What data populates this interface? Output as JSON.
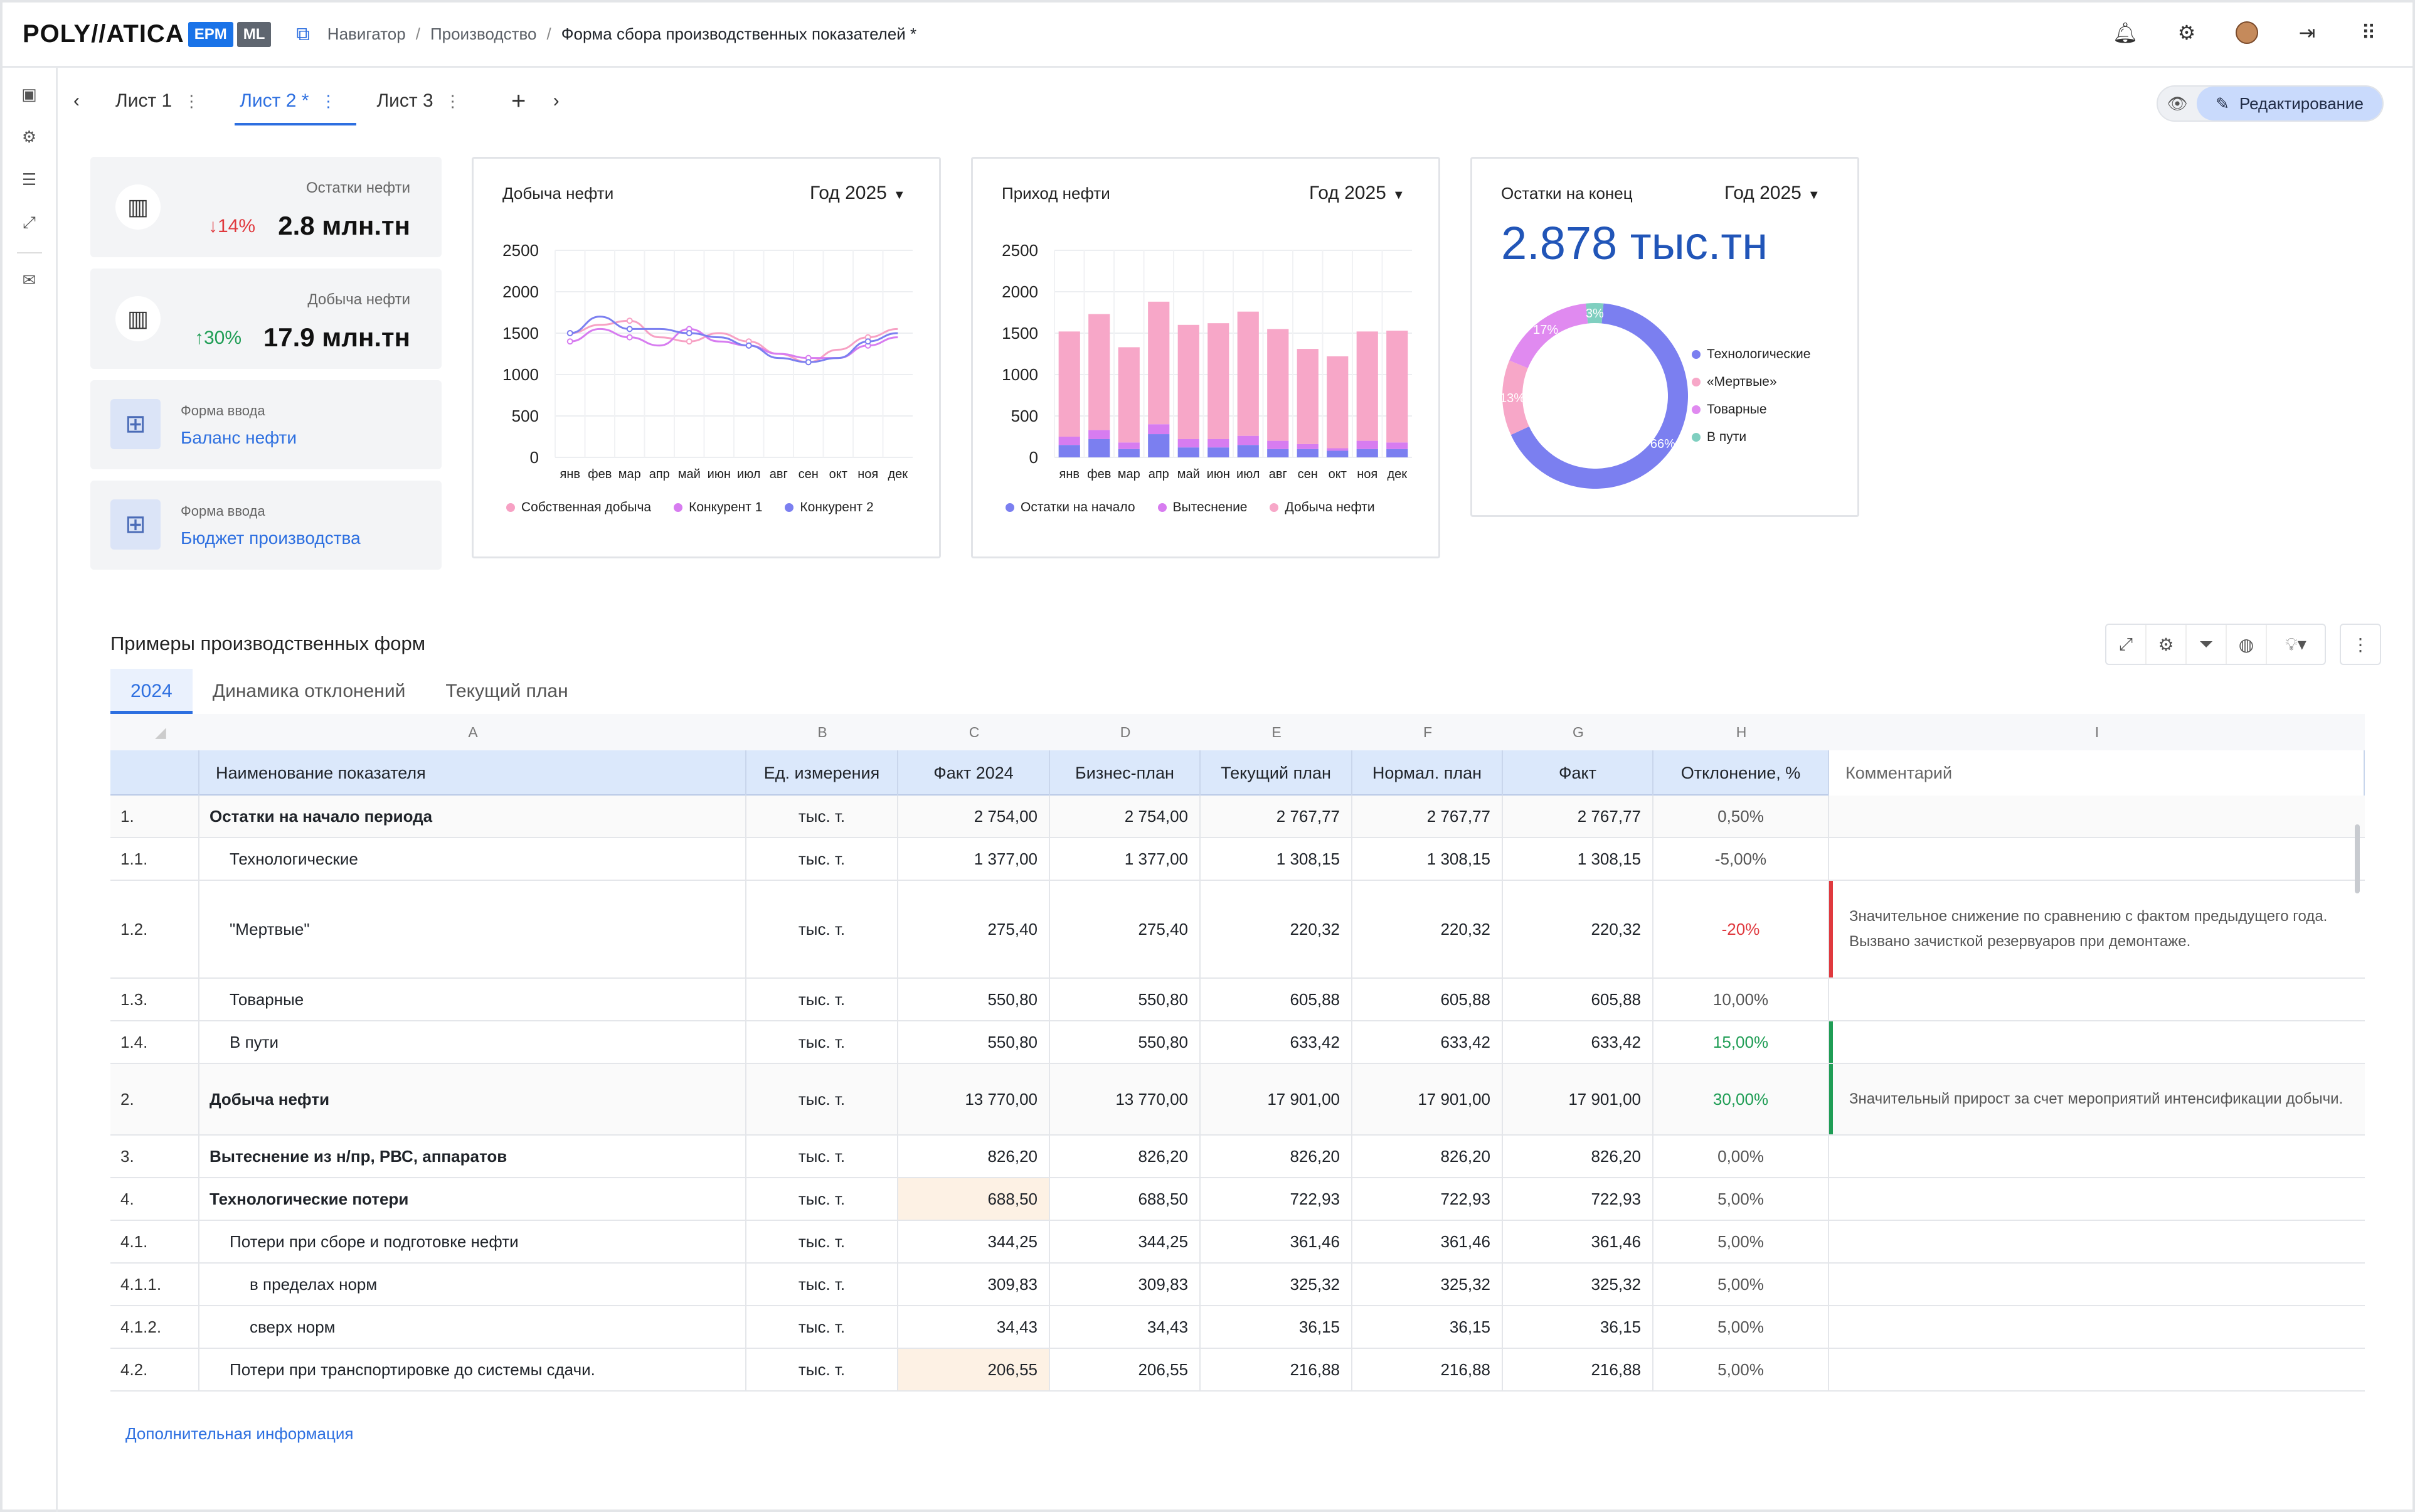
{
  "header": {
    "logo": "POLY//ATICA",
    "badges": [
      {
        "label": "EPM",
        "color": "#1a73e8"
      },
      {
        "label": "ML",
        "color": "#5f6670"
      }
    ],
    "breadcrumbs": [
      "Навигатор",
      "Производство",
      "Форма сбора производственных показателей *"
    ]
  },
  "sheets": {
    "tabs": [
      {
        "label": "Лист 1",
        "active": false
      },
      {
        "label": "Лист 2 *",
        "active": true
      },
      {
        "label": "Лист 3",
        "active": false
      }
    ],
    "edit_label": "Редактирование"
  },
  "kpis": [
    {
      "label": "Остатки нефти",
      "delta": "↓14%",
      "delta_color": "#e0393e",
      "value": "2.8 млн.тн"
    },
    {
      "label": "Добыча нефти",
      "delta": "↑30%",
      "delta_color": "#1f9d55",
      "value": "17.9 млн.тн"
    }
  ],
  "forms": [
    {
      "label": "Форма ввода",
      "link": "Баланс нефти"
    },
    {
      "label": "Форма ввода",
      "link": "Бюджет производства"
    }
  ],
  "charts": {
    "production": {
      "title": "Добыча нефти",
      "year": "Год 2025"
    },
    "income": {
      "title": "Приход нефти",
      "year": "Год 2025"
    },
    "remains": {
      "title": "Остатки на конец",
      "year": "Год 2025",
      "value": "2.878 тыс.тн"
    }
  },
  "chart_data": [
    {
      "type": "line",
      "title": "Добыча нефти",
      "categories": [
        "янв",
        "фев",
        "мар",
        "апр",
        "май",
        "июн",
        "июл",
        "авг",
        "сен",
        "окт",
        "ноя",
        "дек"
      ],
      "ylim": [
        0,
        2500
      ],
      "yticks": [
        2500,
        2000,
        1500,
        1000,
        500,
        0
      ],
      "series": [
        {
          "name": "Собственная добыча",
          "color": "#f7a1c4",
          "values": [
            1500,
            1600,
            1650,
            1450,
            1400,
            1500,
            1400,
            1250,
            1150,
            1300,
            1450,
            1550
          ]
        },
        {
          "name": "Конкурент 1",
          "color": "#d77cf0",
          "values": [
            1400,
            1550,
            1450,
            1350,
            1550,
            1400,
            1350,
            1250,
            1200,
            1200,
            1350,
            1450
          ]
        },
        {
          "name": "Конкурент 2",
          "color": "#7b7ff0",
          "values": [
            1500,
            1700,
            1550,
            1550,
            1500,
            1450,
            1350,
            1200,
            1150,
            1200,
            1400,
            1500
          ]
        }
      ]
    },
    {
      "type": "bar",
      "stacked": true,
      "title": "Приход нефти",
      "categories": [
        "янв",
        "фев",
        "мар",
        "апр",
        "май",
        "июн",
        "июл",
        "авг",
        "сен",
        "окт",
        "ноя",
        "дек"
      ],
      "ylim": [
        0,
        2500
      ],
      "yticks": [
        2500,
        2000,
        1500,
        1000,
        500,
        0
      ],
      "series": [
        {
          "name": "Остатки на начало",
          "color": "#7b7ff0",
          "values": [
            150,
            220,
            100,
            280,
            120,
            120,
            150,
            100,
            100,
            80,
            100,
            100
          ]
        },
        {
          "name": "Вытеснение",
          "color": "#d77cf0",
          "values": [
            100,
            110,
            80,
            120,
            100,
            100,
            110,
            100,
            60,
            30,
            100,
            80
          ]
        },
        {
          "name": "Добыча нефти",
          "color": "#f7a7c8",
          "values": [
            1270,
            1400,
            1150,
            1480,
            1380,
            1400,
            1500,
            1350,
            1150,
            1110,
            1320,
            1350
          ]
        }
      ]
    },
    {
      "type": "pie",
      "donut": true,
      "title": "Остатки на конец",
      "series": [
        {
          "name": "Технологические",
          "color": "#7b7ff0",
          "value": 66
        },
        {
          "name": "«Мертвые»",
          "color": "#f7a7c8",
          "value": 13
        },
        {
          "name": "Товарные",
          "color": "#e08af0",
          "value": 17
        },
        {
          "name": "В пути",
          "color": "#7fcfc0",
          "value": 3
        }
      ]
    }
  ],
  "section": {
    "title": "Примеры производственных форм",
    "tabs": [
      {
        "label": "2024",
        "active": true
      },
      {
        "label": "Динамика отклонений",
        "active": false
      },
      {
        "label": "Текущий план",
        "active": false
      }
    ],
    "more_info": "Дополнительная информация"
  },
  "table": {
    "col_letters": [
      "A",
      "B",
      "C",
      "D",
      "E",
      "F",
      "G",
      "H",
      "I"
    ],
    "headers": [
      "Наименование показателя",
      "Ед. измерения",
      "Факт 2024",
      "Бизнес-план",
      "Текущий план",
      "Нормал. план",
      "Факт",
      "Отклонение, %",
      "Комментарий"
    ],
    "rows": [
      {
        "num": "1.",
        "name": "Остатки на начало периода",
        "unit": "тыс. т.",
        "c": "2 754,00",
        "d": "2 754,00",
        "e": "2 767,77",
        "f": "2 767,77",
        "g": "2 767,77",
        "h": "0,50%",
        "h_color": "#555",
        "comment": "",
        "bold": true,
        "indent": 0,
        "height": 68
      },
      {
        "num": "1.1.",
        "name": "Технологические",
        "unit": "тыс. т.",
        "c": "1 377,00",
        "d": "1 377,00",
        "e": "1 308,15",
        "f": "1 308,15",
        "g": "1 308,15",
        "h": "-5,00%",
        "h_color": "#555",
        "comment": "",
        "bold": false,
        "indent": 1,
        "height": 68
      },
      {
        "num": "1.2.",
        "name": "\"Мертвые\"",
        "unit": "тыс. т.",
        "c": "275,40",
        "d": "275,40",
        "e": "220,32",
        "f": "220,32",
        "g": "220,32",
        "h": "-20%",
        "h_color": "#e0393e",
        "comment": "Значительное снижение по сравнению с фактом предыдущего года. Вызвано зачисткой резервуаров при демонтаже.",
        "comment_color": "#e0393e",
        "bold": false,
        "indent": 1,
        "height": 156
      },
      {
        "num": "1.3.",
        "name": "Товарные",
        "unit": "тыс. т.",
        "c": "550,80",
        "d": "550,80",
        "e": "605,88",
        "f": "605,88",
        "g": "605,88",
        "h": "10,00%",
        "h_color": "#555",
        "comment": "",
        "bold": false,
        "indent": 1,
        "height": 68
      },
      {
        "num": "1.4.",
        "name": "В пути",
        "unit": "тыс. т.",
        "c": "550,80",
        "d": "550,80",
        "e": "633,42",
        "f": "633,42",
        "g": "633,42",
        "h": "15,00%",
        "h_color": "#1f9d55",
        "comment": "",
        "comment_color": "#1f9d55",
        "bold": false,
        "indent": 1,
        "height": 68
      },
      {
        "num": "2.",
        "name": "Добыча нефти",
        "unit": "тыс. т.",
        "c": "13 770,00",
        "d": "13 770,00",
        "e": "17 901,00",
        "f": "17 901,00",
        "g": "17 901,00",
        "h": "30,00%",
        "h_color": "#1f9d55",
        "comment": "Значительный прирост за счет мероприятий интенсификации добычи.",
        "comment_color": "#1f9d55",
        "bold": true,
        "indent": 0,
        "height": 114
      },
      {
        "num": "3.",
        "name": "Вытеснение из н/пр, РВС, аппаратов",
        "unit": "тыс. т.",
        "c": "826,20",
        "d": "826,20",
        "e": "826,20",
        "f": "826,20",
        "g": "826,20",
        "h": "0,00%",
        "h_color": "#555",
        "comment": "",
        "bold": true,
        "indent": 0,
        "height": 68
      },
      {
        "num": "4.",
        "name": "Технологические потери",
        "unit": "тыс. т.",
        "c": "688,50",
        "d": "688,50",
        "e": "722,93",
        "f": "722,93",
        "g": "722,93",
        "h": "5,00%",
        "h_color": "#555",
        "comment": "",
        "bold": true,
        "indent": 0,
        "height": 68,
        "highlight_c": true
      },
      {
        "num": "4.1.",
        "name": "Потери при сборе и подготовке нефти",
        "unit": "тыс. т.",
        "c": "344,25",
        "d": "344,25",
        "e": "361,46",
        "f": "361,46",
        "g": "361,46",
        "h": "5,00%",
        "h_color": "#555",
        "comment": "",
        "bold": false,
        "indent": 1,
        "height": 68
      },
      {
        "num": "4.1.1.",
        "name": "в пределах норм",
        "unit": "тыс. т.",
        "c": "309,83",
        "d": "309,83",
        "e": "325,32",
        "f": "325,32",
        "g": "325,32",
        "h": "5,00%",
        "h_color": "#555",
        "comment": "",
        "bold": false,
        "indent": 2,
        "height": 68
      },
      {
        "num": "4.1.2.",
        "name": "сверх норм",
        "unit": "тыс. т.",
        "c": "34,43",
        "d": "34,43",
        "e": "36,15",
        "f": "36,15",
        "g": "36,15",
        "h": "5,00%",
        "h_color": "#555",
        "comment": "",
        "bold": false,
        "indent": 2,
        "height": 68
      },
      {
        "num": "4.2.",
        "name": "Потери при транспортировке до системы сдачи.",
        "unit": "тыс. т.",
        "c": "206,55",
        "d": "206,55",
        "e": "216,88",
        "f": "216,88",
        "g": "216,88",
        "h": "5,00%",
        "h_color": "#555",
        "comment": "",
        "bold": false,
        "indent": 1,
        "height": 68,
        "highlight_c": true
      }
    ]
  }
}
